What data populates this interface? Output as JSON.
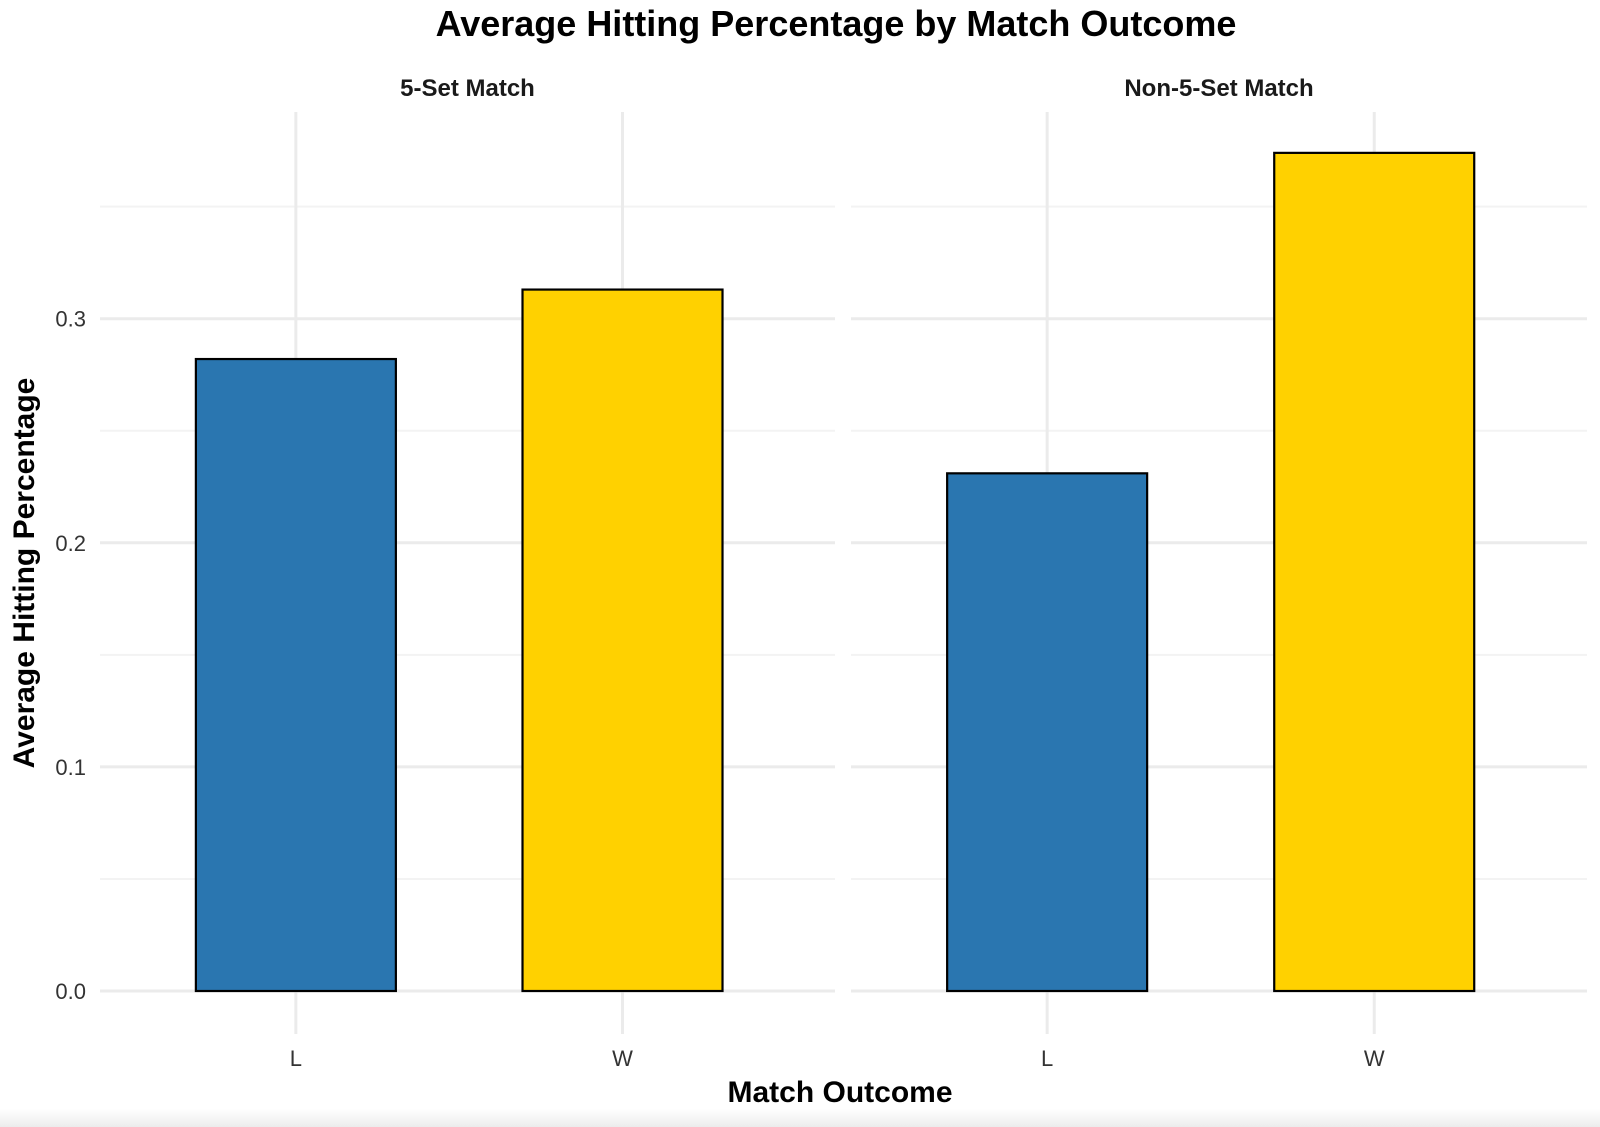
{
  "chart_data": {
    "type": "bar",
    "title": "Average Hitting Percentage by Match Outcome",
    "xlabel": "Match Outcome",
    "ylabel": "Average Hitting Percentage",
    "ylim": [
      0,
      0.39
    ],
    "yticks": [
      0.0,
      0.1,
      0.2,
      0.3
    ],
    "ytick_labels": [
      "0.0",
      "0.1",
      "0.2",
      "0.3"
    ],
    "grid": true,
    "legend": "none",
    "categories": [
      "L",
      "W"
    ],
    "colors": {
      "L": "#2a76b0",
      "W": "#ffd100"
    },
    "panels": [
      {
        "name": "5-Set Match",
        "values": [
          0.282,
          0.313
        ]
      },
      {
        "name": "Non-5-Set Match",
        "values": [
          0.231,
          0.374
        ]
      }
    ]
  }
}
